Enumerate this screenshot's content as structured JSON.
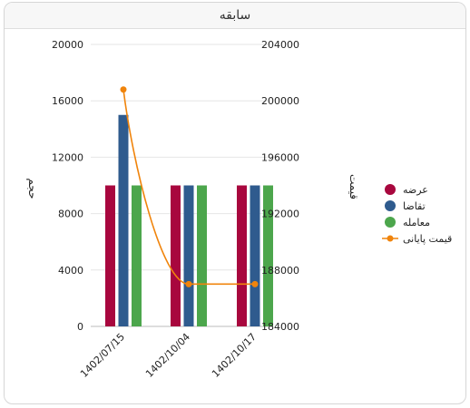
{
  "card": {
    "title": "سابقه"
  },
  "chart_data": {
    "type": "bar",
    "categories": [
      "1402/07/15",
      "1402/10/04",
      "1402/10/17"
    ],
    "series": [
      {
        "name": "عرضه",
        "type": "bar",
        "axis": "left",
        "color": "#a8073e",
        "values": [
          10000,
          10000,
          10000
        ]
      },
      {
        "name": "تقاضا",
        "type": "bar",
        "axis": "left",
        "color": "#2f5b8e",
        "values": [
          15000,
          10000,
          10000
        ]
      },
      {
        "name": "معامله",
        "type": "bar",
        "axis": "left",
        "color": "#4ca64c",
        "values": [
          10000,
          10000,
          10000
        ]
      },
      {
        "name": "قیمت پایانی",
        "type": "line",
        "axis": "right",
        "color": "#f0840c",
        "values": [
          200800,
          187000,
          187000
        ]
      }
    ],
    "y_left": {
      "label": "حجم",
      "min": 0,
      "max": 20000,
      "ticks": [
        0,
        4000,
        8000,
        12000,
        16000,
        20000
      ]
    },
    "y_right": {
      "label": "قیمت",
      "min": 184000,
      "max": 204000,
      "ticks": [
        184000,
        188000,
        192000,
        196000,
        200000,
        204000
      ]
    },
    "grid": true,
    "legend": "right"
  }
}
